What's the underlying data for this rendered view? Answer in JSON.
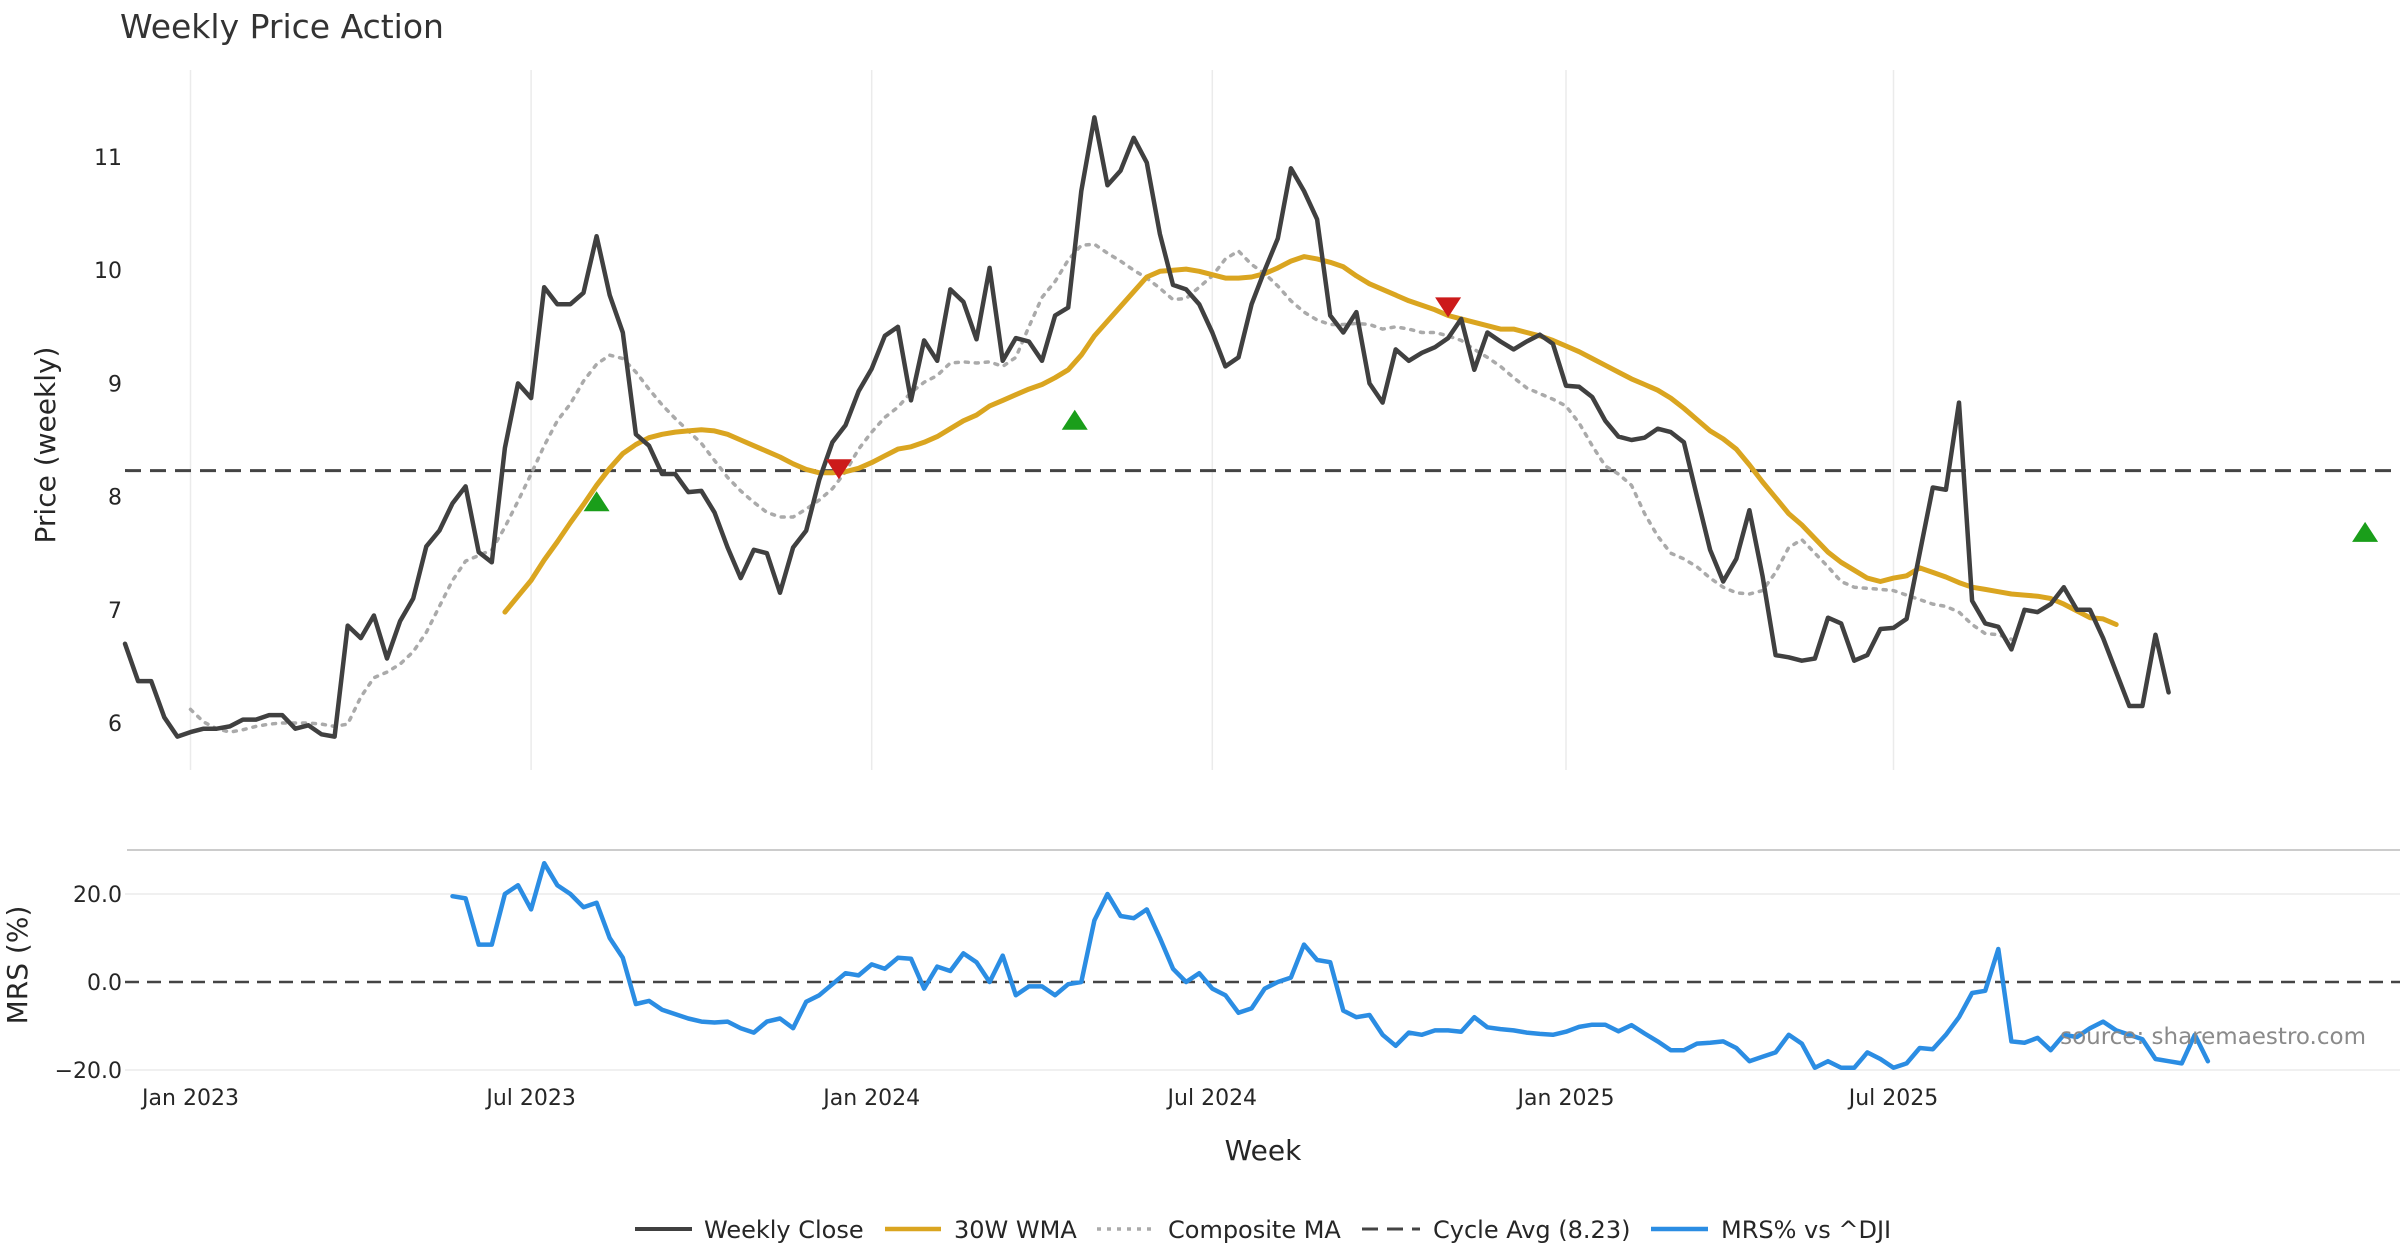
{
  "chart_data": {
    "type": "line",
    "title": "Weekly Price Action",
    "xlabel": "Week",
    "ylabel": "Price (weekly)",
    "ylim": [
      5.6,
      11.7
    ],
    "yticks": [
      6,
      7,
      8,
      9,
      10,
      11
    ],
    "x_start": "2022-11-28",
    "x_end": "2025-11-03",
    "xticks": [
      {
        "label": "Jan 2023",
        "week": 5
      },
      {
        "label": "Jul 2023",
        "week": 31
      },
      {
        "label": "Jan 2024",
        "week": 57
      },
      {
        "label": "Jul 2024",
        "week": 83
      },
      {
        "label": "Jan 2025",
        "week": 110
      },
      {
        "label": "Jul 2025",
        "week": 135
      }
    ],
    "cycle_avg": 8.23,
    "series": [
      {
        "name": "Weekly Close",
        "color": "#404040",
        "style": "solid",
        "values": [
          6.7,
          6.37,
          6.37,
          6.05,
          5.88,
          5.92,
          5.95,
          5.95,
          5.97,
          6.03,
          6.03,
          6.07,
          6.07,
          5.95,
          5.98,
          5.9,
          5.88,
          6.86,
          6.75,
          6.95,
          6.57,
          6.9,
          7.1,
          7.56,
          7.7,
          7.94,
          8.09,
          7.51,
          7.42,
          8.43,
          9.0,
          8.87,
          9.85,
          9.7,
          9.7,
          9.8,
          10.3,
          9.78,
          9.45,
          8.55,
          8.45,
          8.2,
          8.2,
          8.04,
          8.05,
          7.86,
          7.55,
          7.28,
          7.53,
          7.5,
          7.15,
          7.55,
          7.7,
          8.15,
          8.48,
          8.63,
          8.93,
          9.13,
          9.42,
          9.5,
          8.85,
          9.38,
          9.2,
          9.83,
          9.72,
          9.39,
          10.02,
          9.2,
          9.4,
          9.37,
          9.2,
          9.6,
          9.67,
          10.7,
          11.35,
          10.75,
          10.88,
          11.17,
          10.95,
          10.32,
          9.87,
          9.83,
          9.7,
          9.45,
          9.15,
          9.23,
          9.7,
          10.0,
          10.28,
          10.9,
          10.7,
          10.45,
          9.6,
          9.45,
          9.63,
          9.0,
          8.83,
          9.3,
          9.2,
          9.27,
          9.32,
          9.4,
          9.57,
          9.12,
          9.45,
          9.37,
          9.3,
          9.37,
          9.43,
          9.35,
          8.98,
          8.97,
          8.88,
          8.67,
          8.53,
          8.5,
          8.52,
          8.6,
          8.57,
          8.48,
          8.0,
          7.53,
          7.25,
          7.45,
          7.88,
          7.3,
          6.6,
          6.58,
          6.55,
          6.57,
          6.93,
          6.88,
          6.55,
          6.6,
          6.83,
          6.84,
          6.92,
          7.5,
          8.08,
          8.06,
          8.83,
          7.08,
          6.88,
          6.85,
          6.65,
          7.0,
          6.98,
          7.05,
          7.2,
          7.0,
          7.0,
          6.75,
          6.45,
          6.15,
          6.15,
          6.78,
          6.27
        ]
      },
      {
        "name": "30W WMA",
        "color": "#DAA520",
        "style": "solid",
        "start_week": 29,
        "values": [
          6.98,
          7.12,
          7.26,
          7.44,
          7.6,
          7.77,
          7.93,
          8.1,
          8.25,
          8.38,
          8.46,
          8.52,
          8.55,
          8.57,
          8.58,
          8.59,
          8.58,
          8.55,
          8.5,
          8.45,
          8.4,
          8.35,
          8.29,
          8.24,
          8.21,
          8.21,
          8.22,
          8.25,
          8.3,
          8.36,
          8.42,
          8.44,
          8.48,
          8.53,
          8.6,
          8.67,
          8.72,
          8.8,
          8.85,
          8.9,
          8.95,
          8.99,
          9.05,
          9.12,
          9.25,
          9.42,
          9.55,
          9.68,
          9.81,
          9.94,
          9.99,
          10.0,
          10.01,
          9.99,
          9.96,
          9.93,
          9.93,
          9.94,
          9.97,
          10.02,
          10.08,
          10.12,
          10.1,
          10.07,
          10.03,
          9.95,
          9.88,
          9.83,
          9.78,
          9.73,
          9.69,
          9.65,
          9.6,
          9.57,
          9.54,
          9.51,
          9.48,
          9.48,
          9.45,
          9.42,
          9.38,
          9.33,
          9.28,
          9.22,
          9.16,
          9.1,
          9.04,
          8.99,
          8.94,
          8.87,
          8.78,
          8.68,
          8.58,
          8.51,
          8.42,
          8.28,
          8.13,
          7.99,
          7.85,
          7.75,
          7.63,
          7.51,
          7.42,
          7.35,
          7.28,
          7.25,
          7.28,
          7.3,
          7.37,
          7.33,
          7.29,
          7.24,
          7.2,
          7.18,
          7.16,
          7.14,
          7.13,
          7.12,
          7.1,
          7.05,
          6.99,
          6.93,
          6.92,
          6.87
        ]
      },
      {
        "name": "Composite MA",
        "color": "#aaaaaa",
        "style": "dotted",
        "start_week": 5,
        "values": [
          6.12,
          6.01,
          5.95,
          5.92,
          5.94,
          5.97,
          5.99,
          6.0,
          6.0,
          6.0,
          5.99,
          5.97,
          5.99,
          6.23,
          6.4,
          6.45,
          6.52,
          6.63,
          6.8,
          7.03,
          7.26,
          7.43,
          7.48,
          7.53,
          7.73,
          7.96,
          8.2,
          8.45,
          8.67,
          8.82,
          9.02,
          9.17,
          9.25,
          9.22,
          9.1,
          8.95,
          8.81,
          8.69,
          8.58,
          8.47,
          8.32,
          8.17,
          8.05,
          7.95,
          7.86,
          7.82,
          7.82,
          7.89,
          7.97,
          8.07,
          8.22,
          8.42,
          8.57,
          8.7,
          8.79,
          8.92,
          9.01,
          9.07,
          9.18,
          9.19,
          9.18,
          9.19,
          9.15,
          9.23,
          9.5,
          9.76,
          9.9,
          10.09,
          10.22,
          10.23,
          10.15,
          10.08,
          10.0,
          9.93,
          9.84,
          9.74,
          9.75,
          9.85,
          9.95,
          10.1,
          10.17,
          10.05,
          9.97,
          9.86,
          9.73,
          9.63,
          9.56,
          9.52,
          9.52,
          9.53,
          9.52,
          9.48,
          9.5,
          9.48,
          9.45,
          9.45,
          9.42,
          9.38,
          9.3,
          9.23,
          9.15,
          9.05,
          8.96,
          8.91,
          8.86,
          8.8,
          8.65,
          8.45,
          8.27,
          8.2,
          8.1,
          7.85,
          7.65,
          7.5,
          7.45,
          7.38,
          7.28,
          7.2,
          7.15,
          7.14,
          7.17,
          7.33,
          7.55,
          7.62,
          7.5,
          7.38,
          7.25,
          7.2,
          7.19,
          7.18,
          7.17,
          7.13,
          7.09,
          7.05,
          7.03,
          6.98,
          6.87,
          6.79,
          6.78,
          6.74
        ]
      }
    ],
    "signals": [
      {
        "type": "buy",
        "week": 36,
        "value": 7.95,
        "color": "#1a9e1a"
      },
      {
        "type": "sell",
        "week": 54.5,
        "value": 8.25,
        "color": "#cc1a1a"
      },
      {
        "type": "buy",
        "week": 72.5,
        "value": 8.67,
        "color": "#1a9e1a"
      },
      {
        "type": "sell",
        "week": 101,
        "value": 9.68,
        "color": "#cc1a1a"
      },
      {
        "type": "buy",
        "week": 171,
        "value": 7.68,
        "color": "#1a9e1a"
      }
    ],
    "mrs": {
      "name": "MRS% vs ^DJI",
      "ylabel": "MRS (%)",
      "color": "#2b8de3",
      "ylim": [
        -21,
        30
      ],
      "yticks": [
        {
          "value": 20,
          "label": "20.0"
        },
        {
          "value": 0,
          "label": "0.0"
        },
        {
          "value": -20,
          "label": "−20.0"
        }
      ],
      "start_week": 25,
      "values": [
        19.5,
        19.0,
        8.5,
        8.5,
        20.0,
        22.0,
        16.5,
        27.0,
        22.0,
        20.0,
        17.0,
        18.0,
        10.0,
        5.5,
        -5.0,
        -4.3,
        -6.3,
        -7.3,
        -8.3,
        -9.0,
        -9.2,
        -9.0,
        -10.5,
        -11.5,
        -9.0,
        -8.3,
        -10.5,
        -4.5,
        -3.0,
        -0.5,
        2.0,
        1.5,
        4.0,
        3.0,
        5.5,
        5.3,
        -1.5,
        3.5,
        2.5,
        6.5,
        4.5,
        0.0,
        6.0,
        -3.0,
        -1.0,
        -1.0,
        -3.0,
        -0.5,
        0.0,
        14.0,
        20.0,
        15.0,
        14.5,
        16.5,
        10.0,
        3.0,
        0.0,
        2.0,
        -1.5,
        -3.0,
        -7.0,
        -6.0,
        -1.5,
        0.0,
        1.0,
        8.5,
        5.0,
        4.5,
        -6.5,
        -8.0,
        -7.5,
        -12.0,
        -14.5,
        -11.5,
        -12.0,
        -11.0,
        -11.0,
        -11.3,
        -8.0,
        -10.3,
        -10.7,
        -11.0,
        -11.5,
        -11.8,
        -12.0,
        -11.3,
        -10.2,
        -9.7,
        -9.7,
        -11.2,
        -9.8,
        -11.7,
        -13.5,
        -15.5,
        -15.5,
        -14.0,
        -13.8,
        -13.5,
        -15.0,
        -18.0,
        -17.0,
        -16.0,
        -12.0,
        -14.0,
        -19.5,
        -18.0,
        -19.5,
        -19.5,
        -16.0,
        -17.5,
        -19.5,
        -18.5,
        -15.0,
        -15.3,
        -12.0,
        -8.0,
        -2.5,
        -2.0,
        7.5,
        -13.5,
        -13.8,
        -12.7,
        -15.5,
        -12.0,
        -12.5,
        -10.5,
        -9.0,
        -11.0,
        -12.0,
        -13.0,
        -17.5,
        -18.0,
        -18.5,
        -12.0,
        -18.0
      ]
    },
    "legend": [
      "Weekly Close",
      "30W WMA",
      "Composite MA",
      "Cycle Avg (8.23)",
      "MRS% vs ^DJI"
    ],
    "legend_position": "bottom-center",
    "source_text": "source: sharemaestro.com"
  }
}
